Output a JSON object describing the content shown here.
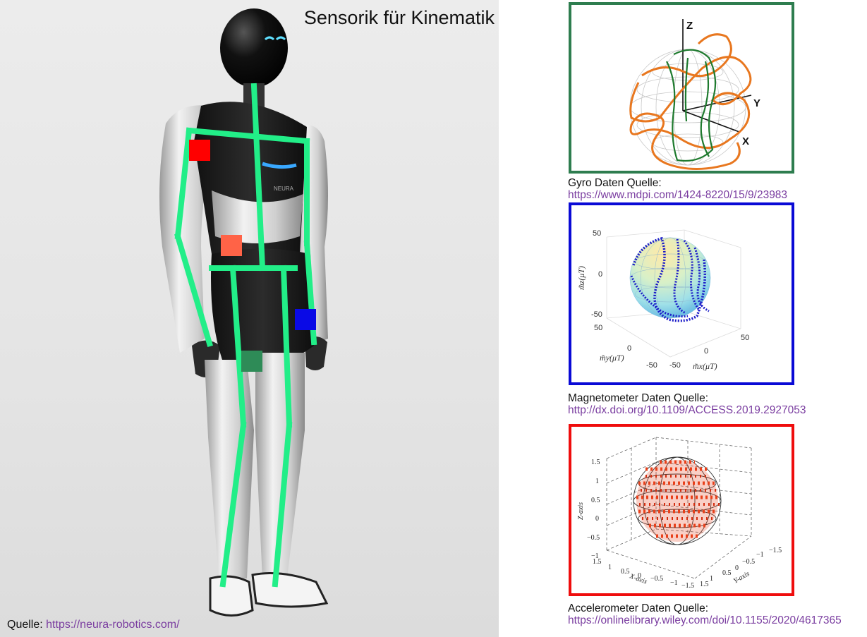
{
  "title": "Sensorik für Kinematik",
  "robot_brand": "NEURA",
  "photo_source": {
    "label": "Quelle:",
    "url": "https://neura-robotics.com/"
  },
  "gyro": {
    "source_label": "Gyro Daten Quelle:",
    "url": "https://www.mdpi.com/1424-8220/15/9/23983",
    "axes": {
      "z": "Z",
      "y": "Y",
      "x": "X"
    },
    "color": "#2e7d4f"
  },
  "magnetometer": {
    "source_label": "Magnetometer Daten Quelle:",
    "url": "http://dx.doi.org/10.1109/ACCESS.2019.2927053",
    "z_ticks": [
      "50",
      "0",
      "-50"
    ],
    "y_ticks": [
      "50",
      "0",
      "-50"
    ],
    "x_ticks": [
      "-50",
      "0",
      "50"
    ],
    "z_label": "m̃z(μT)",
    "y_label": "m̃y(μT)",
    "x_label": "m̃x(μT)",
    "color": "#0a0ad6"
  },
  "accelerometer": {
    "source_label": "Accelerometer Daten Quelle:",
    "url": "https://onlinelibrary.wiley.com/doi/10.1155/2020/4617365",
    "z_ticks": [
      "1.5",
      "1",
      "0.5",
      "0",
      "−0.5",
      "−1"
    ],
    "x_ticks": [
      "1.5",
      "1",
      "0.5",
      "0",
      "−0.5",
      "−1",
      "−1.5"
    ],
    "y_ticks": [
      "1.5",
      "1",
      "0.5",
      "0",
      "−0.5",
      "−1",
      "−1.5"
    ],
    "z_label": "Z-axis",
    "x_label": "X-axis",
    "y_label": "Y-axis",
    "color": "#ef0d0d"
  },
  "sensor_markers": [
    {
      "name": "shoulder",
      "color": "#ff0000"
    },
    {
      "name": "torso",
      "color": "#ff6347"
    },
    {
      "name": "wrist",
      "color": "#0a0ae6"
    },
    {
      "name": "thigh",
      "color": "#2e8b57"
    }
  ],
  "skeleton_color": "#22ee88"
}
